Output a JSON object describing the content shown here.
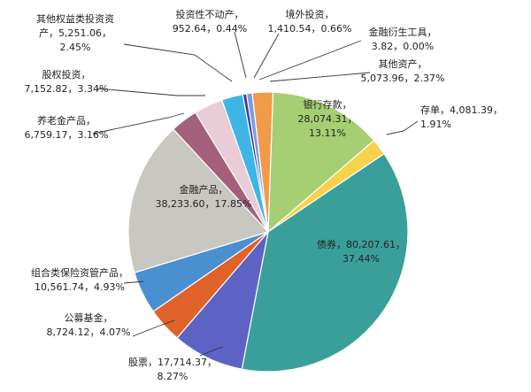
{
  "chart_data": {
    "type": "pie",
    "title": "",
    "slices": [
      {
        "name": "银行存款",
        "value_text": "28,074.31",
        "percent_text": "13.11%",
        "value": 28074.31,
        "percent": 13.11,
        "color": "#a5cf72"
      },
      {
        "name": "存单",
        "value_text": "4,081.39",
        "percent_text": "1.91%",
        "value": 4081.39,
        "percent": 1.91,
        "color": "#f7d24a"
      },
      {
        "name": "债券",
        "value_text": "80,207.61",
        "percent_text": "37.44%",
        "value": 80207.61,
        "percent": 37.44,
        "color": "#3a9f9a"
      },
      {
        "name": "股票",
        "value_text": "17,714.37",
        "percent_text": "8.27%",
        "value": 17714.37,
        "percent": 8.27,
        "color": "#5d63c4"
      },
      {
        "name": "公募基金",
        "value_text": "8,724.12",
        "percent_text": "4.07%",
        "value": 8724.12,
        "percent": 4.07,
        "color": "#e0622a"
      },
      {
        "name": "组合类保险资管产品",
        "value_text": "10,561.74",
        "percent_text": "4.93%",
        "value": 10561.74,
        "percent": 4.93,
        "color": "#4a8fd0"
      },
      {
        "name": "金融产品",
        "value_text": "38,233.60",
        "percent_text": "17.85%",
        "value": 38233.6,
        "percent": 17.85,
        "color": "#c9c7c1"
      },
      {
        "name": "养老金产品",
        "value_text": "6,759.17",
        "percent_text": "3.16%",
        "value": 6759.17,
        "percent": 3.16,
        "color": "#a3607a"
      },
      {
        "name": "股权投资",
        "value_text": "7,152.82",
        "percent_text": "3.34%",
        "value": 7152.82,
        "percent": 3.34,
        "color": "#e8cdd6"
      },
      {
        "name": "其他权益类投资资产",
        "value_text": "5,251.06",
        "percent_text": "2.45%",
        "value": 5251.06,
        "percent": 2.45,
        "color": "#3db6e6"
      },
      {
        "name": "投资性不动产",
        "value_text": "952.64",
        "percent_text": "0.44%",
        "value": 952.64,
        "percent": 0.44,
        "color": "#3b3f8e"
      },
      {
        "name": "境外投资",
        "value_text": "1,410.54",
        "percent_text": "0.66%",
        "value": 1410.54,
        "percent": 0.66,
        "color": "#7d9be0"
      },
      {
        "name": "金融衍生工具",
        "value_text": "3.82",
        "percent_text": "0.00%",
        "value": 3.82,
        "percent": 0.0,
        "color": "#555555"
      },
      {
        "name": "其他资产",
        "value_text": "5,073.96",
        "percent_text": "2.37%",
        "value": 5073.96,
        "percent": 2.37,
        "color": "#f29a4a"
      }
    ]
  }
}
